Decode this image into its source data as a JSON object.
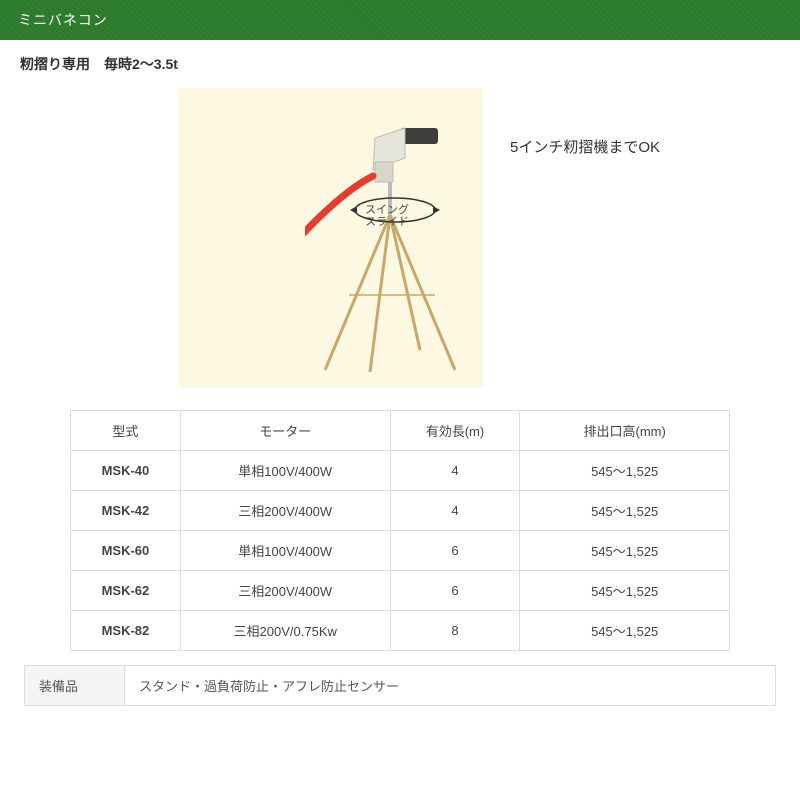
{
  "header": {
    "title": "ミニバネコン"
  },
  "subtitle": "籾摺り専用　毎時2～3.5t",
  "callout": "5インチ籾摺機までOK",
  "swing_top": "スイング",
  "swing_bottom": "スライド",
  "illustration": {
    "bg_color": "#fdf8e2",
    "hose_color": "#e63b2e",
    "motor_color": "#3d3d3d",
    "nozzle_color": "#cfd0c0",
    "leg_color": "#c9a76a"
  },
  "specs": {
    "columns": [
      "型式",
      "モーター",
      "有効長(m)",
      "排出口高(mm)"
    ],
    "col_widths": [
      "110px",
      "210px",
      "130px",
      "210px"
    ],
    "rows": [
      [
        "MSK-40",
        "単相100V/400W",
        "4",
        "545～1,525"
      ],
      [
        "MSK-42",
        "三相200V/400W",
        "4",
        "545～1,525"
      ],
      [
        "MSK-60",
        "単相100V/400W",
        "6",
        "545～1,525"
      ],
      [
        "MSK-62",
        "三相200V/400W",
        "6",
        "545～1,525"
      ],
      [
        "MSK-82",
        "三相200V/0.75Kw",
        "8",
        "545～1,525"
      ]
    ]
  },
  "equipment": {
    "label": "装備品",
    "text": "スタンド・過負荷防止・アフレ防止センサー"
  }
}
